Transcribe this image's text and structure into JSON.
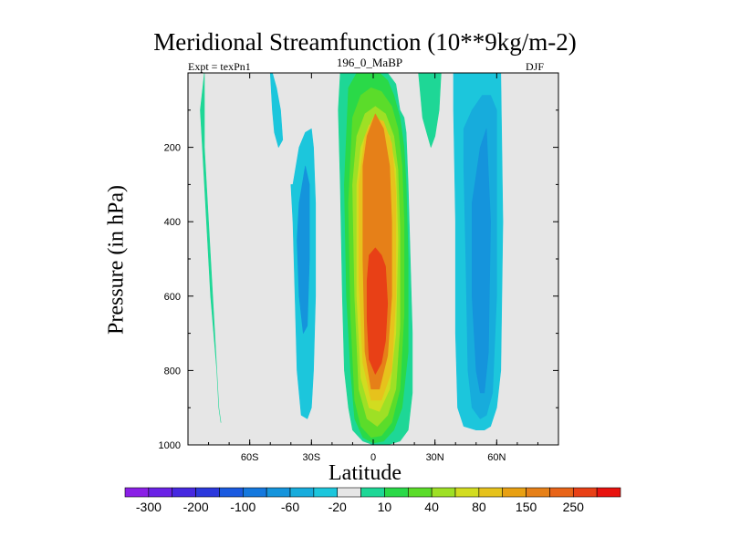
{
  "header": {
    "title": "Meridional Streamfunction (10**9kg/m-2)",
    "experiment": "Expt = texPn1",
    "subtitle": "196_0_MaBP",
    "season": "DJF"
  },
  "chart_data": {
    "type": "heatmap",
    "title": "Meridional Streamfunction (10**9kg/m-2)",
    "xlabel": "Latitude",
    "ylabel": "Pressure (in hPa)",
    "x_ticks": [
      "60S",
      "30S",
      "0",
      "30N",
      "60N"
    ],
    "x_tick_values": [
      -60,
      -30,
      0,
      30,
      60
    ],
    "xlim": [
      -90,
      90
    ],
    "y_ticks": [
      "200",
      "400",
      "600",
      "800",
      "1000"
    ],
    "y_tick_values": [
      200,
      400,
      600,
      800,
      1000
    ],
    "ylim": [
      1000,
      0
    ],
    "y_inverted": true,
    "grid": false,
    "colorbar": {
      "position": "bottom",
      "labels": [
        "-300",
        "-200",
        "-100",
        "-60",
        "-20",
        "10",
        "40",
        "80",
        "150",
        "250"
      ],
      "colors": [
        "#8a1fe6",
        "#6a22e6",
        "#4628e0",
        "#2b38dc",
        "#1a5ae0",
        "#1478de",
        "#1594dc",
        "#17acdc",
        "#1cc6dc",
        "#e6e6e6",
        "#1ed796",
        "#2ad948",
        "#5bdc2a",
        "#9ee025",
        "#d2dc20",
        "#e6c21c",
        "#e8a012",
        "#e68018",
        "#e86418",
        "#e84016",
        "#e8120e"
      ]
    },
    "background_color": "#e6e6e6",
    "regions": [
      {
        "name": "sh-high-lat-positive",
        "color": "#1ed796",
        "level": "10",
        "lat": [
          -82,
          -82,
          -79,
          -76,
          -75,
          -74,
          -75,
          -76,
          -79,
          -81,
          -83,
          -84,
          -82,
          -80,
          -77
        ],
        "p": [
          0,
          200,
          500,
          800,
          900,
          940,
          900,
          800,
          600,
          400,
          200,
          100,
          0,
          0,
          0
        ]
      },
      {
        "name": "sh-weak-negative-upper",
        "color": "#1cc6dc",
        "level": "-20",
        "lat": [
          -50,
          -49,
          -48,
          -46,
          -44,
          -45,
          -47,
          -49
        ],
        "p": [
          0,
          100,
          160,
          200,
          180,
          100,
          40,
          0
        ]
      },
      {
        "name": "sh-negative-cell",
        "color": "#1cc6dc",
        "level": "-20",
        "lat": [
          -39,
          -36,
          -33,
          -30,
          -29,
          -28,
          -28,
          -29,
          -30,
          -32,
          -35,
          -37,
          -38,
          -39,
          -40
        ],
        "p": [
          300,
          200,
          160,
          150,
          200,
          350,
          600,
          800,
          900,
          930,
          920,
          800,
          600,
          400,
          300
        ]
      },
      {
        "name": "sh-negative-core",
        "color": "#1594dc",
        "level": "-60",
        "lat": [
          -36,
          -33,
          -31,
          -31,
          -32,
          -34,
          -36,
          -37
        ],
        "p": [
          350,
          250,
          300,
          500,
          680,
          700,
          600,
          450
        ]
      },
      {
        "name": "hadley-10",
        "color": "#1ed796",
        "level": "10",
        "lat": [
          -16,
          -11,
          -4,
          3,
          7,
          11,
          13,
          15,
          16,
          17,
          18,
          19,
          19,
          17,
          13,
          7,
          0,
          -5,
          -10,
          -12,
          -14,
          -15,
          -16,
          -17
        ],
        "p": [
          0,
          0,
          0,
          0,
          0,
          30,
          100,
          120,
          160,
          300,
          500,
          700,
          860,
          960,
          990,
          1000,
          1000,
          990,
          960,
          900,
          800,
          600,
          300,
          100
        ]
      },
      {
        "name": "hadley-40",
        "color": "#2ad948",
        "level": "40",
        "lat": [
          -12,
          -8,
          -2,
          3,
          7,
          10,
          13,
          15,
          16,
          17,
          17,
          14,
          10,
          5,
          0,
          -5,
          -9,
          -11,
          -13,
          -14
        ],
        "p": [
          40,
          0,
          0,
          0,
          20,
          60,
          120,
          200,
          300,
          500,
          750,
          900,
          960,
          990,
          995,
          980,
          930,
          800,
          600,
          300
        ]
      },
      {
        "name": "hadley-80",
        "color": "#5bdc2a",
        "level": "80",
        "lat": [
          -10,
          -6,
          -1,
          4,
          9,
          12,
          14,
          15,
          15,
          13,
          9,
          4,
          -1,
          -6,
          -9,
          -11,
          -12
        ],
        "p": [
          120,
          60,
          40,
          50,
          90,
          150,
          250,
          400,
          650,
          850,
          940,
          975,
          980,
          950,
          880,
          650,
          350
        ]
      },
      {
        "name": "hadley-100",
        "color": "#9ee025",
        "level": "100",
        "lat": [
          -8,
          -4,
          1,
          6,
          10,
          12,
          13,
          13,
          11,
          7,
          2,
          -3,
          -7,
          -9,
          -10
        ],
        "p": [
          170,
          110,
          90,
          110,
          170,
          260,
          420,
          680,
          850,
          920,
          950,
          930,
          850,
          600,
          300
        ]
      },
      {
        "name": "hadley-120",
        "color": "#d2dc20",
        "level": "120",
        "lat": [
          -6,
          -2,
          3,
          8,
          11,
          12,
          11,
          8,
          3,
          -2,
          -6,
          -8,
          -8
        ],
        "p": [
          200,
          140,
          130,
          170,
          260,
          450,
          700,
          850,
          910,
          900,
          820,
          600,
          300
        ]
      },
      {
        "name": "hadley-150",
        "color": "#e6c21c",
        "level": "150",
        "lat": [
          -4,
          0,
          5,
          9,
          11,
          11,
          9,
          4,
          -1,
          -5,
          -7,
          -7
        ],
        "p": [
          170,
          120,
          130,
          190,
          320,
          600,
          800,
          880,
          880,
          780,
          550,
          300
        ]
      },
      {
        "name": "hadley-200",
        "color": "#e68018",
        "level": "200",
        "lat": [
          -3,
          1,
          5,
          8,
          9,
          9,
          7,
          3,
          -1,
          -4,
          -5,
          -5
        ],
        "p": [
          170,
          110,
          150,
          250,
          400,
          600,
          760,
          850,
          850,
          750,
          500,
          250
        ]
      },
      {
        "name": "hadley-core",
        "color": "#e84016",
        "level": "250",
        "lat": [
          -2,
          1,
          4,
          6,
          7,
          6,
          4,
          1,
          -2,
          -3,
          -3
        ],
        "p": [
          490,
          470,
          490,
          520,
          620,
          720,
          780,
          810,
          770,
          660,
          560
        ]
      },
      {
        "name": "nh-weak-positive-upper",
        "color": "#1ed796",
        "level": "10",
        "lat": [
          22,
          26,
          30,
          33,
          32,
          30,
          28,
          26,
          24,
          23
        ],
        "p": [
          0,
          0,
          0,
          0,
          100,
          170,
          200,
          160,
          120,
          60
        ]
      },
      {
        "name": "nh-negative-cell",
        "color": "#1cc6dc",
        "level": "-20",
        "lat": [
          39,
          45,
          52,
          58,
          62,
          63,
          62,
          60,
          57,
          54,
          50,
          44,
          41,
          40,
          40,
          39
        ],
        "p": [
          0,
          0,
          0,
          0,
          0,
          400,
          800,
          900,
          950,
          960,
          960,
          950,
          900,
          700,
          400,
          100
        ]
      },
      {
        "name": "nh-negative-mid",
        "color": "#17acdc",
        "level": "-40",
        "lat": [
          44,
          48,
          53,
          57,
          60,
          60,
          58,
          55,
          52,
          48,
          46,
          45,
          44
        ],
        "p": [
          150,
          100,
          60,
          60,
          100,
          600,
          860,
          920,
          930,
          900,
          800,
          500,
          250
        ]
      },
      {
        "name": "nh-negative-core",
        "color": "#1594dc",
        "level": "-60",
        "lat": [
          48,
          52,
          55,
          57,
          56,
          54,
          52,
          50,
          48
        ],
        "p": [
          350,
          200,
          150,
          400,
          750,
          860,
          860,
          800,
          600
        ]
      }
    ]
  }
}
